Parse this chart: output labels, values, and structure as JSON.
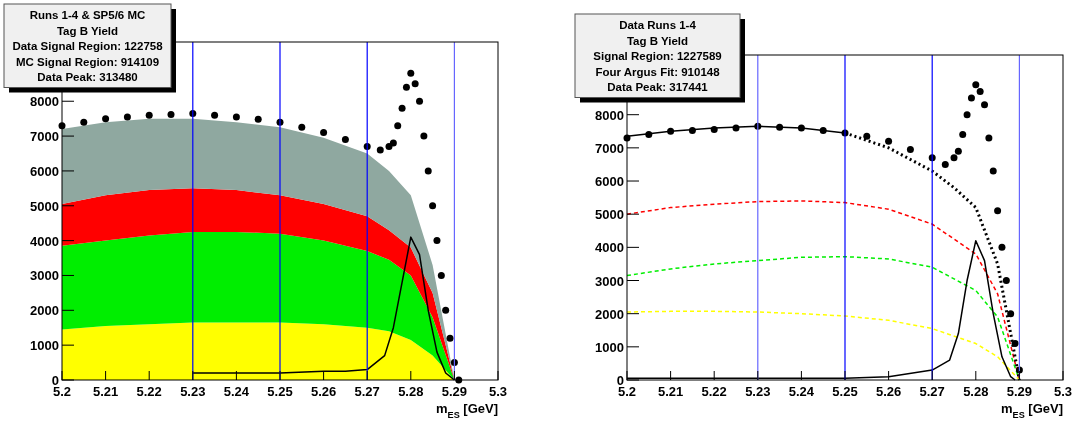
{
  "chart_data": [
    {
      "type": "area",
      "stacked": true,
      "xlabel": "m$_{ES}$ [GeV]",
      "xlim": [
        5.2,
        5.3
      ],
      "ylim": [
        0,
        9700
      ],
      "xticks": [
        5.2,
        5.21,
        5.22,
        5.23,
        5.24,
        5.25,
        5.26,
        5.27,
        5.28,
        5.29,
        5.3
      ],
      "yticks": [
        0,
        1000,
        2000,
        3000,
        4000,
        5000,
        6000,
        7000,
        8000
      ],
      "x": [
        5.2,
        5.21,
        5.22,
        5.23,
        5.24,
        5.25,
        5.26,
        5.27,
        5.275,
        5.28,
        5.285,
        5.29
      ],
      "annotations": [
        "Runs 1-4 & SP5/6 MC",
        "Tag B Yield",
        "Data Signal Region: 122758",
        "MC Signal Region: 914109",
        "Data Peak: 313480"
      ],
      "ref_lines": [
        {
          "axis": "x",
          "value": 5.23,
          "color": "#0000ff"
        },
        {
          "axis": "x",
          "value": 5.25,
          "color": "#0000ff"
        },
        {
          "axis": "x",
          "value": 5.27,
          "color": "#0000ff"
        },
        {
          "axis": "x",
          "value": 5.29,
          "color": "#6666ff"
        }
      ],
      "series": [
        {
          "color": "#ffff00",
          "values": [
            1450,
            1550,
            1600,
            1650,
            1650,
            1650,
            1600,
            1500,
            1400,
            1150,
            700,
            0
          ]
        },
        {
          "color": "#00ee00",
          "values": [
            2400,
            2450,
            2550,
            2600,
            2600,
            2550,
            2400,
            2200,
            2050,
            1850,
            1100,
            0
          ]
        },
        {
          "color": "#ff0000",
          "values": [
            1200,
            1300,
            1300,
            1250,
            1200,
            1100,
            1050,
            1000,
            850,
            800,
            700,
            0
          ]
        },
        {
          "color": "#8fa8a0",
          "values": [
            2150,
            2100,
            2050,
            2000,
            1950,
            1950,
            1900,
            1800,
            1700,
            1500,
            800,
            0
          ]
        },
        {
          "type": "line",
          "color": "#000000",
          "x": [
            5.23,
            5.24,
            5.25,
            5.26,
            5.265,
            5.27,
            5.274,
            5.276,
            5.278,
            5.28,
            5.282,
            5.284,
            5.286,
            5.288,
            5.29
          ],
          "values": [
            200,
            200,
            200,
            250,
            250,
            300,
            700,
            1500,
            2800,
            4100,
            3600,
            2000,
            800,
            200,
            0
          ]
        },
        {
          "type": "scatter",
          "marker": "circle",
          "color": "#000000",
          "x": [
            5.2,
            5.205,
            5.21,
            5.215,
            5.22,
            5.225,
            5.23,
            5.235,
            5.24,
            5.245,
            5.25,
            5.255,
            5.26,
            5.265,
            5.27,
            5.273,
            5.275,
            5.276,
            5.277,
            5.278,
            5.279,
            5.28,
            5.281,
            5.282,
            5.283,
            5.284,
            5.285,
            5.286,
            5.287,
            5.288,
            5.289,
            5.29,
            5.291
          ],
          "values": [
            7300,
            7400,
            7500,
            7550,
            7600,
            7620,
            7650,
            7600,
            7550,
            7480,
            7400,
            7250,
            7100,
            6900,
            6700,
            6600,
            6700,
            6800,
            7300,
            7800,
            8400,
            8800,
            8500,
            8000,
            7000,
            6000,
            5000,
            4000,
            3000,
            2000,
            1200,
            500,
            0
          ]
        }
      ]
    },
    {
      "type": "line",
      "xlabel": "m$_{ES}$ [GeV]",
      "xlim": [
        5.2,
        5.3
      ],
      "ylim": [
        0,
        9800
      ],
      "xticks": [
        5.2,
        5.21,
        5.22,
        5.23,
        5.24,
        5.25,
        5.26,
        5.27,
        5.28,
        5.29,
        5.3
      ],
      "yticks": [
        0,
        1000,
        2000,
        3000,
        4000,
        5000,
        6000,
        7000,
        8000
      ],
      "x": [
        5.2,
        5.21,
        5.22,
        5.23,
        5.24,
        5.25,
        5.26,
        5.27,
        5.28,
        5.285,
        5.29
      ],
      "annotations": [
        "Data Runs 1-4",
        "Tag B Yield",
        "Signal Region: 1227589",
        "Four Argus Fit: 910148",
        "Data Peak: 317441"
      ],
      "ref_lines": [
        {
          "axis": "x",
          "value": 5.23,
          "color": "#6666ff"
        },
        {
          "axis": "x",
          "value": 5.25,
          "color": "#0000ff"
        },
        {
          "axis": "x",
          "value": 5.27,
          "color": "#0000ff"
        },
        {
          "axis": "x",
          "value": 5.29,
          "color": "#6666ff"
        }
      ],
      "series": [
        {
          "color": "#ff0000",
          "line_style": "dashed",
          "values": [
            5000,
            5200,
            5300,
            5380,
            5400,
            5350,
            5150,
            4700,
            3800,
            2600,
            0
          ]
        },
        {
          "color": "#00ee00",
          "line_style": "dashed",
          "values": [
            3150,
            3350,
            3500,
            3600,
            3700,
            3720,
            3650,
            3400,
            2700,
            1900,
            0
          ]
        },
        {
          "color": "#ffff00",
          "line_style": "dashed",
          "values": [
            2050,
            2070,
            2070,
            2050,
            2000,
            1930,
            1800,
            1550,
            1100,
            700,
            0
          ]
        },
        {
          "color": "#000000",
          "line_style": "solid",
          "x": [
            5.2,
            5.21,
            5.22,
            5.23,
            5.24,
            5.25
          ],
          "values": [
            7350,
            7500,
            7600,
            7650,
            7600,
            7450
          ]
        },
        {
          "color": "#000000",
          "line_style": "dotted",
          "x": [
            5.25,
            5.26,
            5.27,
            5.275,
            5.28,
            5.285,
            5.29
          ],
          "values": [
            7450,
            7000,
            6300,
            5800,
            5200,
            3500,
            0
          ]
        },
        {
          "color": "#000000",
          "line_style": "solid",
          "x": [
            5.2,
            5.21,
            5.22,
            5.23,
            5.24,
            5.25,
            5.26,
            5.27,
            5.274,
            5.276,
            5.278,
            5.28,
            5.282,
            5.284,
            5.286,
            5.288,
            5.289
          ],
          "values": [
            50,
            50,
            50,
            50,
            50,
            50,
            100,
            300,
            600,
            1400,
            3000,
            4200,
            3600,
            2000,
            700,
            100,
            0
          ]
        },
        {
          "type": "scatter",
          "marker": "circle",
          "color": "#000000",
          "x": [
            5.2,
            5.205,
            5.21,
            5.215,
            5.22,
            5.225,
            5.23,
            5.235,
            5.24,
            5.245,
            5.25,
            5.255,
            5.26,
            5.265,
            5.27,
            5.273,
            5.275,
            5.276,
            5.277,
            5.278,
            5.279,
            5.28,
            5.281,
            5.282,
            5.283,
            5.284,
            5.285,
            5.286,
            5.287,
            5.288,
            5.289,
            5.29
          ],
          "values": [
            7300,
            7400,
            7500,
            7520,
            7550,
            7600,
            7650,
            7620,
            7600,
            7520,
            7450,
            7350,
            7200,
            6950,
            6700,
            6500,
            6700,
            6900,
            7400,
            8000,
            8500,
            8900,
            8700,
            8300,
            7300,
            6300,
            5100,
            4000,
            3000,
            2000,
            1100,
            300
          ]
        }
      ]
    }
  ]
}
